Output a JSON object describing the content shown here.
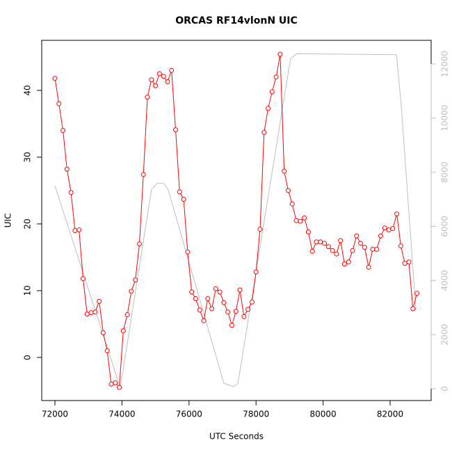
{
  "chart_data": {
    "type": "line",
    "title": "ORCAS RF14vlonN UIC",
    "xlabel": "UTC Seconds",
    "ylabel": "UIC",
    "xlim": [
      71606,
      83224
    ],
    "ylim": [
      -6.46,
      47.5
    ],
    "y2lim": [
      -437,
      12874
    ],
    "xticks": [
      72000,
      74000,
      76000,
      78000,
      80000,
      82000
    ],
    "yticks": [
      0,
      10,
      20,
      30,
      40
    ],
    "y2ticks": [
      0,
      2000,
      4000,
      6000,
      8000,
      10000,
      12000
    ],
    "series": [
      {
        "color": "#ff0000",
        "marker": "circle",
        "x": [
          72000,
          72120,
          72240,
          72360,
          72480,
          72600,
          72720,
          72840,
          72960,
          73080,
          73200,
          73320,
          73440,
          73560,
          73680,
          73800,
          73920,
          74040,
          74160,
          74280,
          74400,
          74520,
          74640,
          74760,
          74880,
          75000,
          75120,
          75240,
          75360,
          75480,
          75600,
          75720,
          75840,
          75960,
          76080,
          76200,
          76320,
          76440,
          76560,
          76680,
          76800,
          76920,
          77040,
          77160,
          77280,
          77400,
          77520,
          77640,
          77760,
          77880,
          78000,
          78120,
          78240,
          78360,
          78480,
          78600,
          78720,
          78840,
          78960,
          79080,
          79200,
          79320,
          79440,
          79560,
          79680,
          79800,
          79920,
          80040,
          80160,
          80280,
          80400,
          80520,
          80640,
          80760,
          80880,
          81000,
          81120,
          81240,
          81360,
          81480,
          81600,
          81720,
          81840,
          81960,
          82080,
          82200,
          82320,
          82440,
          82560,
          82680,
          82800
        ],
        "values": [
          41.8,
          38,
          34,
          28.2,
          24.7,
          19,
          19.1,
          11.8,
          6.5,
          6.7,
          6.8,
          8.4,
          3.7,
          1.0,
          -4,
          -3.8,
          -4.5,
          4,
          6.4,
          9.9,
          11.6,
          17,
          27.4,
          39,
          41.6,
          40.7,
          42.5,
          42.1,
          41.3,
          43,
          34.1,
          24.8,
          23.7,
          15.8,
          9.8,
          8.8,
          7.1,
          5.5,
          8.8,
          7.3,
          10.3,
          9.8,
          8.2,
          6.8,
          4.8,
          6.9,
          10.1,
          6.1,
          7.2,
          8.3,
          12.8,
          19.2,
          33.7,
          37.3,
          39.8,
          42,
          45.4,
          27.9,
          25,
          23,
          20.5,
          20.4,
          20.9,
          18.8,
          15.9,
          17.3,
          17.3,
          17.1,
          16.6,
          16,
          15.5,
          17.5,
          14,
          14.3,
          16,
          18.2,
          17.1,
          16.5,
          13.5,
          16.2,
          16.2,
          18.2,
          19.4,
          19.1,
          19.3,
          21.5,
          16.7,
          14.1,
          14.3,
          7.3,
          9.6
        ]
      },
      {
        "color": "#bebebe",
        "axis": "y2",
        "x": [
          72000,
          73950,
          74880,
          75050,
          75260,
          75380,
          77040,
          77330,
          77460,
          79030,
          79220,
          82190,
          82330,
          82770
        ],
        "values": [
          7500,
          30,
          7350,
          7600,
          7580,
          7350,
          200,
          80,
          200,
          12200,
          12380,
          12340,
          10500,
          2900
        ]
      }
    ]
  }
}
